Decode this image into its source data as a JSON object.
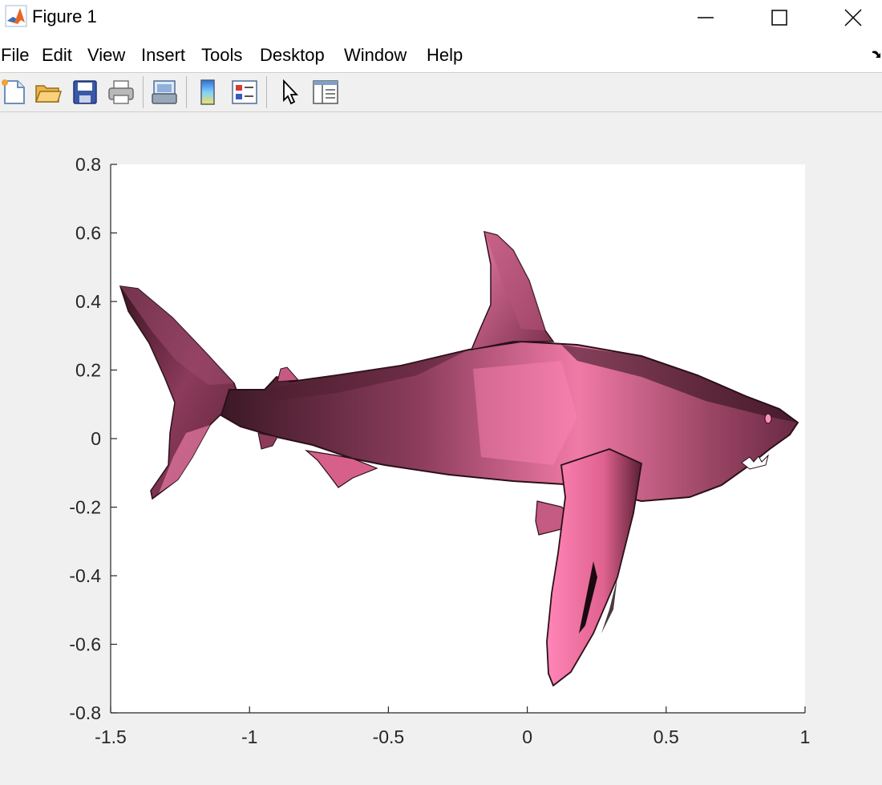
{
  "window": {
    "title": "Figure 1",
    "icons": [
      "matlab-logo-icon",
      "minimize-icon",
      "maximize-icon",
      "close-icon"
    ]
  },
  "menu": {
    "items": [
      {
        "label": "File"
      },
      {
        "label": "Edit"
      },
      {
        "label": "View"
      },
      {
        "label": "Insert"
      },
      {
        "label": "Tools"
      },
      {
        "label": "Desktop"
      },
      {
        "label": "Window"
      },
      {
        "label": "Help"
      }
    ],
    "overflow_icon": "dock-arrow-icon"
  },
  "toolbar": {
    "buttons": [
      {
        "icon": "new-figure-icon"
      },
      {
        "icon": "open-file-icon"
      },
      {
        "icon": "save-figure-icon"
      },
      {
        "icon": "print-figure-icon"
      },
      {
        "icon": "link-plot-icon"
      },
      {
        "icon": "insert-colorbar-icon"
      },
      {
        "icon": "insert-legend-icon"
      },
      {
        "icon": "edit-plot-pointer-icon"
      },
      {
        "icon": "open-property-inspector-icon"
      }
    ]
  },
  "chart_data": {
    "type": "surface-3d-mesh",
    "title": "",
    "xlabel": "",
    "ylabel": "",
    "xlim": [
      -1.5,
      1
    ],
    "ylim": [
      -0.8,
      0.8
    ],
    "xticks": [
      "-1.5",
      "-1",
      "-0.5",
      "0",
      "0.5",
      "1"
    ],
    "yticks": [
      "0.8",
      "0.6",
      "0.4",
      "0.2",
      "0",
      "-0.2",
      "-0.4",
      "-0.6",
      "-0.8"
    ],
    "grid": false,
    "legend": "none",
    "object": "shark",
    "face_color": "#d9607f",
    "highlight_color": "#ff7ab0",
    "shadow_color": "#2a1018"
  }
}
